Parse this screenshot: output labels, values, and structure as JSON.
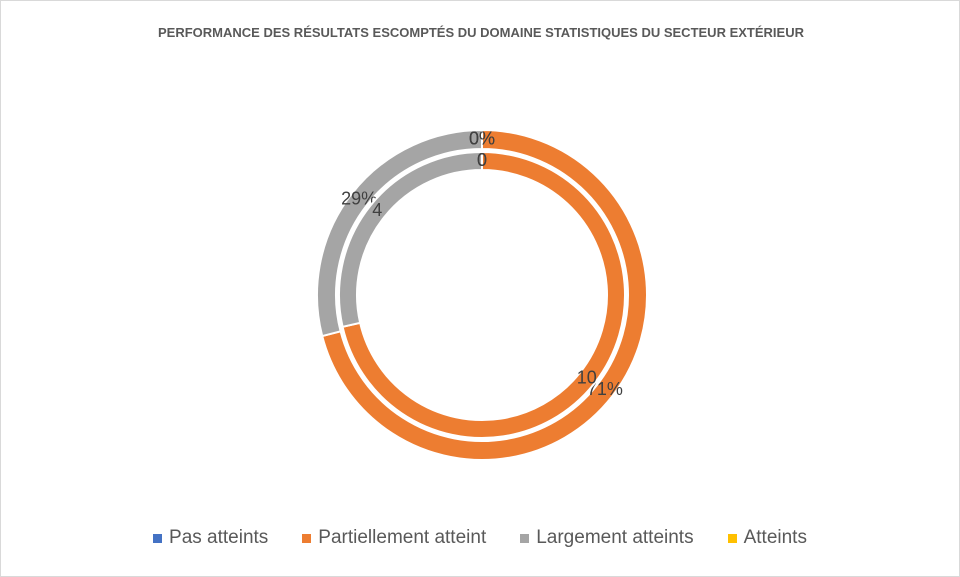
{
  "chart_data": {
    "type": "doughnut",
    "title": "PERFORMANCE DES RÉSULTATS ESCOMPTÉS DU DOMAINE STATISTIQUES DU SECTEUR EXTÉRIEUR",
    "categories": [
      "Pas atteints",
      "Partiellement atteint",
      "Largement atteints",
      "Atteints"
    ],
    "colors": [
      "#4472c4",
      "#ed7d31",
      "#a5a5a5",
      "#ffc000"
    ],
    "series": [
      {
        "values": [
          0,
          71,
          29,
          0
        ],
        "value_labels": [
          "0%",
          "71%",
          "29%",
          "0%"
        ]
      },
      {
        "values": [
          0,
          10,
          4,
          0
        ]
      }
    ],
    "legend": "bottom"
  }
}
